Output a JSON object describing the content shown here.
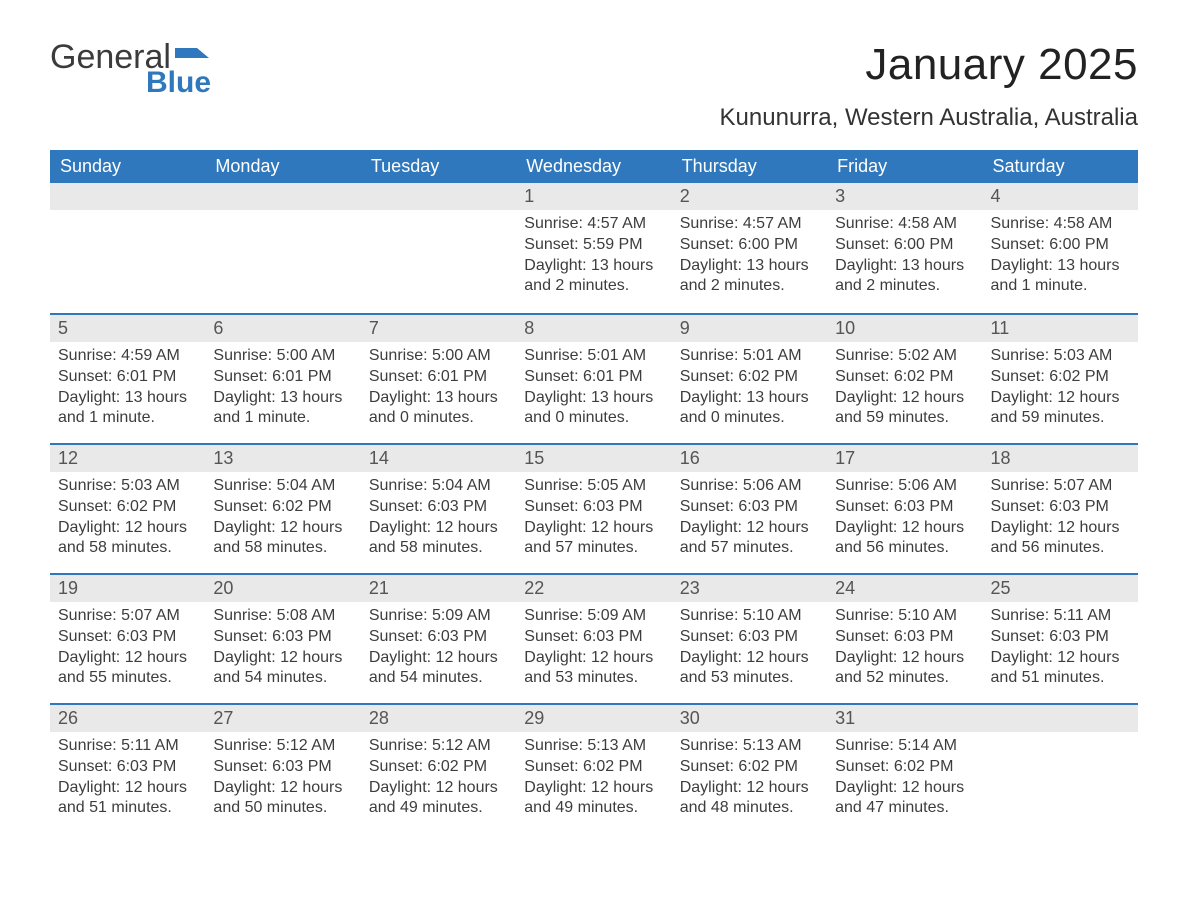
{
  "logo": {
    "word1": "General",
    "word2": "Blue",
    "flag_color": "#2f78bd",
    "text_color_dark": "#3b3b3b"
  },
  "header": {
    "month_title": "January 2025",
    "location": "Kununurra, Western Australia, Australia"
  },
  "style": {
    "header_bg": "#2f78bd",
    "header_text": "#ffffff",
    "daynum_bg": "#e9e9e9",
    "row_border": "#2f78bd",
    "body_text": "#3d3d3d",
    "page_bg": "#ffffff",
    "title_fontsize": 44,
    "location_fontsize": 24,
    "dow_fontsize": 18,
    "cell_fontsize": 16
  },
  "days_of_week": [
    "Sunday",
    "Monday",
    "Tuesday",
    "Wednesday",
    "Thursday",
    "Friday",
    "Saturday"
  ],
  "weeks": [
    [
      {
        "empty": true
      },
      {
        "empty": true
      },
      {
        "empty": true
      },
      {
        "day": "1",
        "sunrise": "Sunrise: 4:57 AM",
        "sunset": "Sunset: 5:59 PM",
        "dl1": "Daylight: 13 hours",
        "dl2": "and 2 minutes."
      },
      {
        "day": "2",
        "sunrise": "Sunrise: 4:57 AM",
        "sunset": "Sunset: 6:00 PM",
        "dl1": "Daylight: 13 hours",
        "dl2": "and 2 minutes."
      },
      {
        "day": "3",
        "sunrise": "Sunrise: 4:58 AM",
        "sunset": "Sunset: 6:00 PM",
        "dl1": "Daylight: 13 hours",
        "dl2": "and 2 minutes."
      },
      {
        "day": "4",
        "sunrise": "Sunrise: 4:58 AM",
        "sunset": "Sunset: 6:00 PM",
        "dl1": "Daylight: 13 hours",
        "dl2": "and 1 minute."
      }
    ],
    [
      {
        "day": "5",
        "sunrise": "Sunrise: 4:59 AM",
        "sunset": "Sunset: 6:01 PM",
        "dl1": "Daylight: 13 hours",
        "dl2": "and 1 minute."
      },
      {
        "day": "6",
        "sunrise": "Sunrise: 5:00 AM",
        "sunset": "Sunset: 6:01 PM",
        "dl1": "Daylight: 13 hours",
        "dl2": "and 1 minute."
      },
      {
        "day": "7",
        "sunrise": "Sunrise: 5:00 AM",
        "sunset": "Sunset: 6:01 PM",
        "dl1": "Daylight: 13 hours",
        "dl2": "and 0 minutes."
      },
      {
        "day": "8",
        "sunrise": "Sunrise: 5:01 AM",
        "sunset": "Sunset: 6:01 PM",
        "dl1": "Daylight: 13 hours",
        "dl2": "and 0 minutes."
      },
      {
        "day": "9",
        "sunrise": "Sunrise: 5:01 AM",
        "sunset": "Sunset: 6:02 PM",
        "dl1": "Daylight: 13 hours",
        "dl2": "and 0 minutes."
      },
      {
        "day": "10",
        "sunrise": "Sunrise: 5:02 AM",
        "sunset": "Sunset: 6:02 PM",
        "dl1": "Daylight: 12 hours",
        "dl2": "and 59 minutes."
      },
      {
        "day": "11",
        "sunrise": "Sunrise: 5:03 AM",
        "sunset": "Sunset: 6:02 PM",
        "dl1": "Daylight: 12 hours",
        "dl2": "and 59 minutes."
      }
    ],
    [
      {
        "day": "12",
        "sunrise": "Sunrise: 5:03 AM",
        "sunset": "Sunset: 6:02 PM",
        "dl1": "Daylight: 12 hours",
        "dl2": "and 58 minutes."
      },
      {
        "day": "13",
        "sunrise": "Sunrise: 5:04 AM",
        "sunset": "Sunset: 6:02 PM",
        "dl1": "Daylight: 12 hours",
        "dl2": "and 58 minutes."
      },
      {
        "day": "14",
        "sunrise": "Sunrise: 5:04 AM",
        "sunset": "Sunset: 6:03 PM",
        "dl1": "Daylight: 12 hours",
        "dl2": "and 58 minutes."
      },
      {
        "day": "15",
        "sunrise": "Sunrise: 5:05 AM",
        "sunset": "Sunset: 6:03 PM",
        "dl1": "Daylight: 12 hours",
        "dl2": "and 57 minutes."
      },
      {
        "day": "16",
        "sunrise": "Sunrise: 5:06 AM",
        "sunset": "Sunset: 6:03 PM",
        "dl1": "Daylight: 12 hours",
        "dl2": "and 57 minutes."
      },
      {
        "day": "17",
        "sunrise": "Sunrise: 5:06 AM",
        "sunset": "Sunset: 6:03 PM",
        "dl1": "Daylight: 12 hours",
        "dl2": "and 56 minutes."
      },
      {
        "day": "18",
        "sunrise": "Sunrise: 5:07 AM",
        "sunset": "Sunset: 6:03 PM",
        "dl1": "Daylight: 12 hours",
        "dl2": "and 56 minutes."
      }
    ],
    [
      {
        "day": "19",
        "sunrise": "Sunrise: 5:07 AM",
        "sunset": "Sunset: 6:03 PM",
        "dl1": "Daylight: 12 hours",
        "dl2": "and 55 minutes."
      },
      {
        "day": "20",
        "sunrise": "Sunrise: 5:08 AM",
        "sunset": "Sunset: 6:03 PM",
        "dl1": "Daylight: 12 hours",
        "dl2": "and 54 minutes."
      },
      {
        "day": "21",
        "sunrise": "Sunrise: 5:09 AM",
        "sunset": "Sunset: 6:03 PM",
        "dl1": "Daylight: 12 hours",
        "dl2": "and 54 minutes."
      },
      {
        "day": "22",
        "sunrise": "Sunrise: 5:09 AM",
        "sunset": "Sunset: 6:03 PM",
        "dl1": "Daylight: 12 hours",
        "dl2": "and 53 minutes."
      },
      {
        "day": "23",
        "sunrise": "Sunrise: 5:10 AM",
        "sunset": "Sunset: 6:03 PM",
        "dl1": "Daylight: 12 hours",
        "dl2": "and 53 minutes."
      },
      {
        "day": "24",
        "sunrise": "Sunrise: 5:10 AM",
        "sunset": "Sunset: 6:03 PM",
        "dl1": "Daylight: 12 hours",
        "dl2": "and 52 minutes."
      },
      {
        "day": "25",
        "sunrise": "Sunrise: 5:11 AM",
        "sunset": "Sunset: 6:03 PM",
        "dl1": "Daylight: 12 hours",
        "dl2": "and 51 minutes."
      }
    ],
    [
      {
        "day": "26",
        "sunrise": "Sunrise: 5:11 AM",
        "sunset": "Sunset: 6:03 PM",
        "dl1": "Daylight: 12 hours",
        "dl2": "and 51 minutes."
      },
      {
        "day": "27",
        "sunrise": "Sunrise: 5:12 AM",
        "sunset": "Sunset: 6:03 PM",
        "dl1": "Daylight: 12 hours",
        "dl2": "and 50 minutes."
      },
      {
        "day": "28",
        "sunrise": "Sunrise: 5:12 AM",
        "sunset": "Sunset: 6:02 PM",
        "dl1": "Daylight: 12 hours",
        "dl2": "and 49 minutes."
      },
      {
        "day": "29",
        "sunrise": "Sunrise: 5:13 AM",
        "sunset": "Sunset: 6:02 PM",
        "dl1": "Daylight: 12 hours",
        "dl2": "and 49 minutes."
      },
      {
        "day": "30",
        "sunrise": "Sunrise: 5:13 AM",
        "sunset": "Sunset: 6:02 PM",
        "dl1": "Daylight: 12 hours",
        "dl2": "and 48 minutes."
      },
      {
        "day": "31",
        "sunrise": "Sunrise: 5:14 AM",
        "sunset": "Sunset: 6:02 PM",
        "dl1": "Daylight: 12 hours",
        "dl2": "and 47 minutes."
      },
      {
        "empty": true
      }
    ]
  ]
}
